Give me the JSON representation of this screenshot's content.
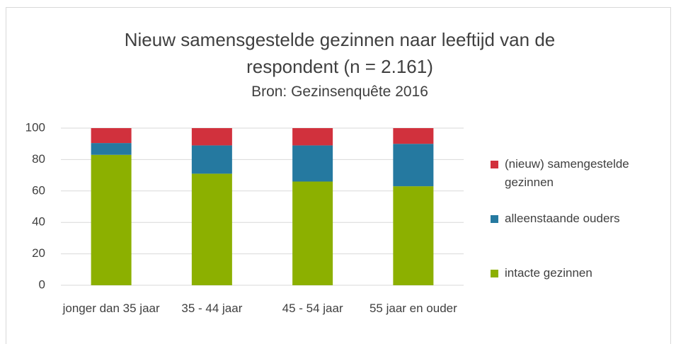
{
  "chart_data": {
    "type": "bar",
    "stacked": true,
    "title": "Nieuw samensgestelde gezinnen naar leeftijd van de respondent (n = 2.161)",
    "subtitle": "Bron: Gezinsenquête 2016",
    "categories": [
      "jonger dan 35 jaar",
      "35 - 44 jaar",
      "45 - 54 jaar",
      "55 jaar en ouder"
    ],
    "series": [
      {
        "name": "intacte gezinnen",
        "color": "#8cb000",
        "values": [
          83,
          71,
          66,
          63
        ]
      },
      {
        "name": "alleenstaande ouders",
        "color": "#2579a0",
        "values": [
          7.5,
          18,
          23,
          27
        ]
      },
      {
        "name": "(nieuw) samengestelde gezinnen",
        "color": "#d1313d",
        "values": [
          9.5,
          11,
          11,
          10
        ]
      }
    ],
    "ylim": [
      0,
      100
    ],
    "yticks": [
      0,
      20,
      40,
      60,
      80,
      100
    ],
    "grid": true,
    "legend": "right"
  }
}
